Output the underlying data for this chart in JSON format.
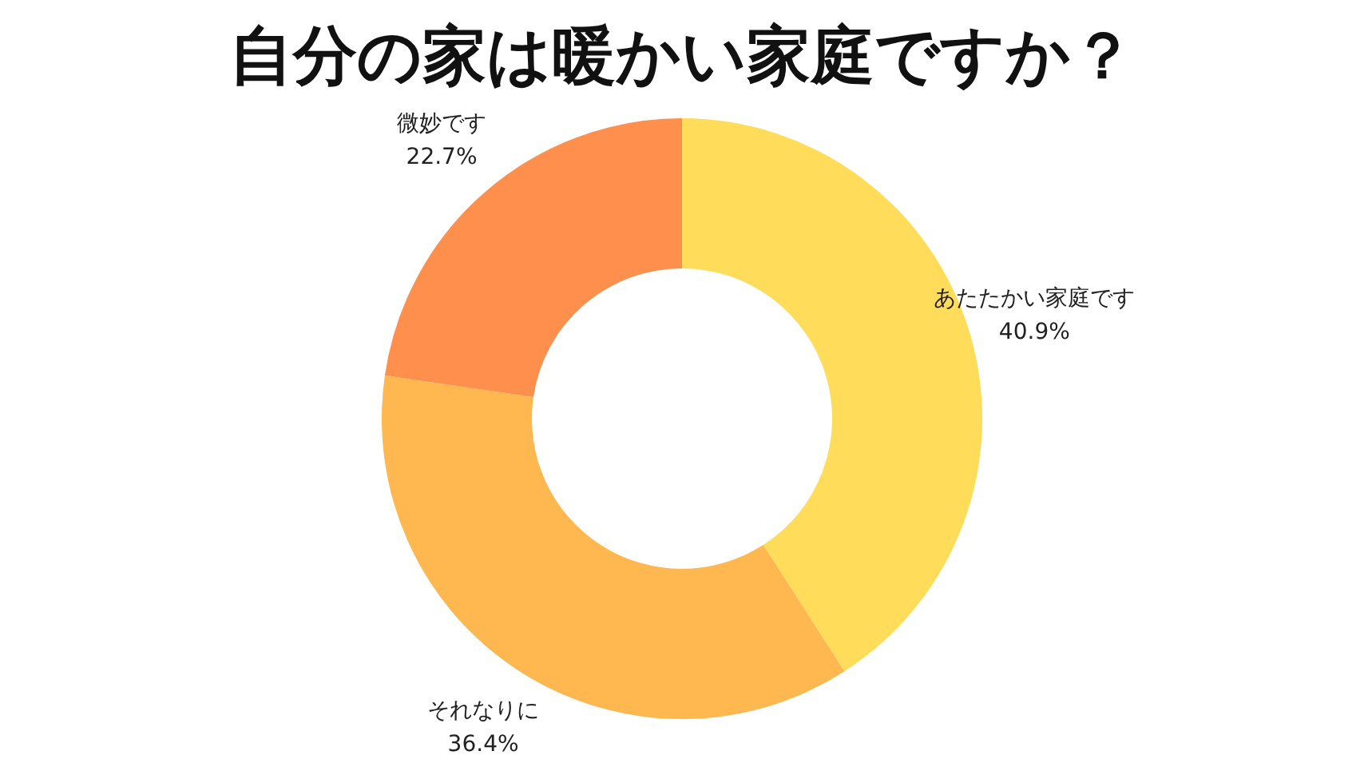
{
  "chart_data": {
    "type": "donut",
    "title": "自分の家は暖かい家庭ですか？",
    "categories": [
      "あたたかい家庭です",
      "それなりに",
      "微妙です"
    ],
    "values": [
      40.9,
      36.4,
      22.7
    ],
    "value_labels": [
      "40.9%",
      "36.4%",
      "22.7%"
    ],
    "colors": [
      "#ffdd5a",
      "#ffb74f",
      "#ff8f4d"
    ],
    "legend": false
  }
}
